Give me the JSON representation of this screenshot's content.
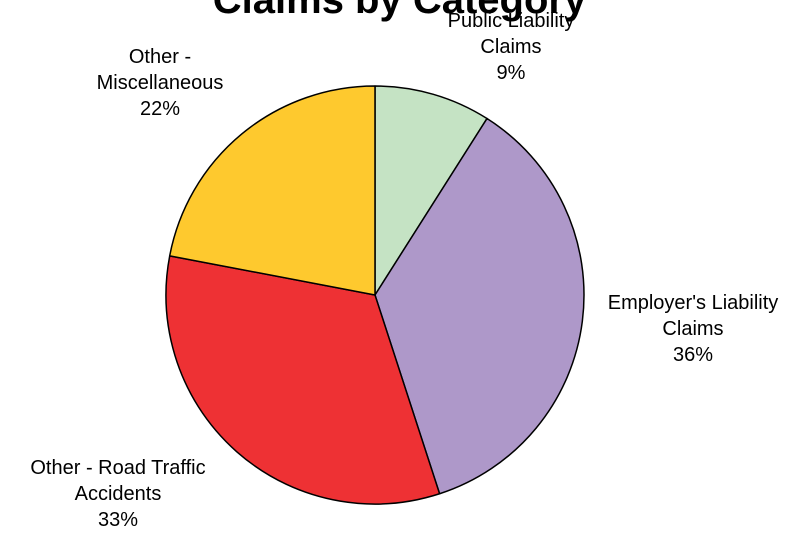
{
  "chart_data": {
    "type": "pie",
    "title": "Claims by Category",
    "start_angle_deg": 0,
    "direction": "clockwise",
    "slices": [
      {
        "label_lines": [
          "Public Liability",
          "Claims"
        ],
        "percent_label": "9%",
        "value": 9,
        "color": "#c5e3c4"
      },
      {
        "label_lines": [
          "Employer's Liability",
          "Claims"
        ],
        "percent_label": "36%",
        "value": 36,
        "color": "#ae98c9"
      },
      {
        "label_lines": [
          "Other - Road Traffic",
          "Accidents"
        ],
        "percent_label": "33%",
        "value": 33,
        "color": "#ee3134"
      },
      {
        "label_lines": [
          "Other -",
          "Miscellaneous"
        ],
        "percent_label": "22%",
        "value": 22,
        "color": "#fec92e"
      }
    ],
    "legend": "none",
    "grid": false
  }
}
